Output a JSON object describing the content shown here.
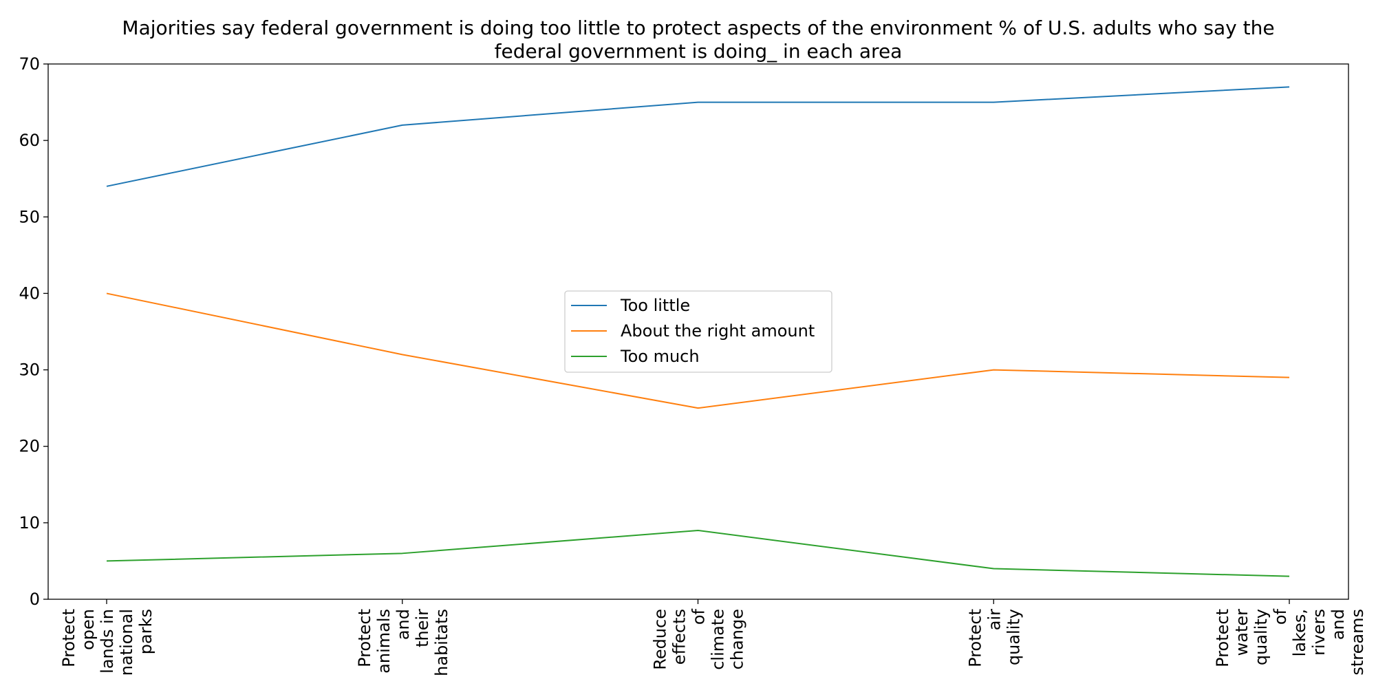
{
  "chart_data": {
    "type": "line",
    "title": "Majorities say federal government is doing too little to protect aspects of the environment % of U.S. adults who say the federal government is doing_ in each area",
    "title_lines": [
      "Majorities say federal government is doing too little to protect aspects of the environment % of U.S. adults who say the",
      "federal government is doing_ in each area"
    ],
    "xlabel": "",
    "ylabel": "",
    "ylim": [
      0,
      70
    ],
    "yticks": [
      "0",
      "10",
      "20",
      "30",
      "40",
      "50",
      "60",
      "70"
    ],
    "grid": false,
    "legend_position": "center",
    "categories": [
      "Protect open lands in national parks",
      "Protect animals and their habitats",
      "Reduce effects of climate change",
      "Protect air quality",
      "Protect water quality of lakes, rivers and streams"
    ],
    "category_lines": [
      [
        "Protect",
        "open",
        "lands in",
        "national",
        "parks"
      ],
      [
        "Protect",
        "animals",
        "and",
        "their",
        "habitats"
      ],
      [
        "Reduce",
        "effects",
        "of",
        "climate",
        "change"
      ],
      [
        "Protect",
        "air",
        "quality"
      ],
      [
        "Protect",
        "water",
        "quality",
        "of",
        "lakes,",
        "rivers",
        "and",
        "streams"
      ]
    ],
    "series": [
      {
        "name": "Too little",
        "color": "#1f77b4",
        "values": [
          54,
          62,
          65,
          65,
          67
        ]
      },
      {
        "name": "About the right amount",
        "color": "#ff7f0e",
        "values": [
          40,
          32,
          25,
          30,
          29
        ]
      },
      {
        "name": "Too much",
        "color": "#2ca02c",
        "values": [
          5,
          6,
          9,
          4,
          3
        ]
      }
    ]
  }
}
